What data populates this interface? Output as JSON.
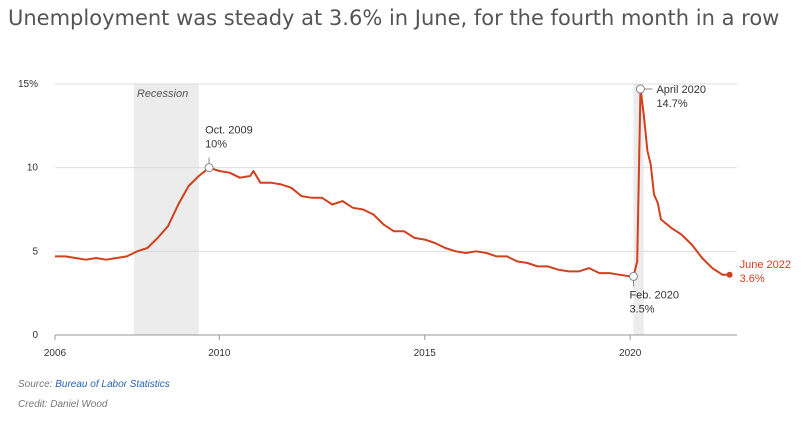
{
  "header": {
    "title": "Unemployment was steady at 3.6% in June, for the fourth month in a row"
  },
  "footer": {
    "source_prefix": "Source: ",
    "source_link": "Bureau of Labor Statistics",
    "credit": "Credit: Daniel Wood"
  },
  "colors": {
    "line": "#d2401f",
    "grid": "#dddddd",
    "recession_band": "#ececec",
    "axis_text": "#333333"
  },
  "chart_data": {
    "type": "line",
    "title": "Unemployment was steady at 3.6% in June, for the fourth month in a row",
    "xlabel": "",
    "ylabel": "",
    "xlim": [
      2006,
      2022.6
    ],
    "ylim": [
      0,
      15
    ],
    "x_ticks": [
      {
        "value": 2006,
        "label": "2006"
      },
      {
        "value": 2010,
        "label": "2010"
      },
      {
        "value": 2015,
        "label": "2015"
      },
      {
        "value": 2020,
        "label": "2020"
      }
    ],
    "y_ticks": [
      {
        "value": 0,
        "label": "0"
      },
      {
        "value": 5,
        "label": "5"
      },
      {
        "value": 10,
        "label": "10"
      },
      {
        "value": 15,
        "label": "15%"
      }
    ],
    "grid": true,
    "recession_bands": [
      {
        "label": "Recession",
        "start": 2007.92,
        "end": 2009.5
      },
      {
        "label": "",
        "start": 2020.08,
        "end": 2020.33
      }
    ],
    "series": [
      {
        "values": [
          [
            2006.0,
            4.7
          ],
          [
            2006.25,
            4.7
          ],
          [
            2006.5,
            4.6
          ],
          [
            2006.75,
            4.5
          ],
          [
            2007.0,
            4.6
          ],
          [
            2007.25,
            4.5
          ],
          [
            2007.5,
            4.6
          ],
          [
            2007.75,
            4.7
          ],
          [
            2008.0,
            5.0
          ],
          [
            2008.25,
            5.2
          ],
          [
            2008.5,
            5.8
          ],
          [
            2008.75,
            6.5
          ],
          [
            2009.0,
            7.8
          ],
          [
            2009.25,
            8.9
          ],
          [
            2009.5,
            9.5
          ],
          [
            2009.75,
            10.0
          ],
          [
            2010.0,
            9.8
          ],
          [
            2010.25,
            9.7
          ],
          [
            2010.5,
            9.4
          ],
          [
            2010.75,
            9.5
          ],
          [
            2010.83,
            9.8
          ],
          [
            2011.0,
            9.1
          ],
          [
            2011.25,
            9.1
          ],
          [
            2011.5,
            9.0
          ],
          [
            2011.75,
            8.8
          ],
          [
            2012.0,
            8.3
          ],
          [
            2012.25,
            8.2
          ],
          [
            2012.5,
            8.2
          ],
          [
            2012.75,
            7.8
          ],
          [
            2013.0,
            8.0
          ],
          [
            2013.25,
            7.6
          ],
          [
            2013.5,
            7.5
          ],
          [
            2013.75,
            7.2
          ],
          [
            2014.0,
            6.6
          ],
          [
            2014.25,
            6.2
          ],
          [
            2014.5,
            6.2
          ],
          [
            2014.75,
            5.8
          ],
          [
            2015.0,
            5.7
          ],
          [
            2015.25,
            5.5
          ],
          [
            2015.5,
            5.2
          ],
          [
            2015.75,
            5.0
          ],
          [
            2016.0,
            4.9
          ],
          [
            2016.25,
            5.0
          ],
          [
            2016.5,
            4.9
          ],
          [
            2016.75,
            4.7
          ],
          [
            2017.0,
            4.7
          ],
          [
            2017.25,
            4.4
          ],
          [
            2017.5,
            4.3
          ],
          [
            2017.75,
            4.1
          ],
          [
            2018.0,
            4.1
          ],
          [
            2018.25,
            3.9
          ],
          [
            2018.5,
            3.8
          ],
          [
            2018.75,
            3.8
          ],
          [
            2019.0,
            4.0
          ],
          [
            2019.25,
            3.7
          ],
          [
            2019.5,
            3.7
          ],
          [
            2019.75,
            3.6
          ],
          [
            2020.0,
            3.5
          ],
          [
            2020.08,
            3.5
          ],
          [
            2020.17,
            4.4
          ],
          [
            2020.25,
            14.7
          ],
          [
            2020.33,
            13.2
          ],
          [
            2020.42,
            11.0
          ],
          [
            2020.5,
            10.2
          ],
          [
            2020.58,
            8.4
          ],
          [
            2020.67,
            7.9
          ],
          [
            2020.75,
            6.9
          ],
          [
            2021.0,
            6.4
          ],
          [
            2021.25,
            6.0
          ],
          [
            2021.5,
            5.4
          ],
          [
            2021.75,
            4.6
          ],
          [
            2022.0,
            4.0
          ],
          [
            2022.25,
            3.6
          ],
          [
            2022.42,
            3.6
          ]
        ]
      }
    ],
    "annotations": [
      {
        "x": 2009.75,
        "y": 10.0,
        "label": "Oct. 2009",
        "sub": "10%",
        "position": "above"
      },
      {
        "x": 2020.25,
        "y": 14.7,
        "label": "April 2020",
        "sub": "14.7%",
        "position": "right"
      },
      {
        "x": 2020.08,
        "y": 3.5,
        "label": "Feb. 2020",
        "sub": "3.5%",
        "position": "below"
      },
      {
        "x": 2022.42,
        "y": 3.6,
        "label": "June 2022",
        "sub": "3.6%",
        "position": "right",
        "highlight": true
      }
    ]
  }
}
